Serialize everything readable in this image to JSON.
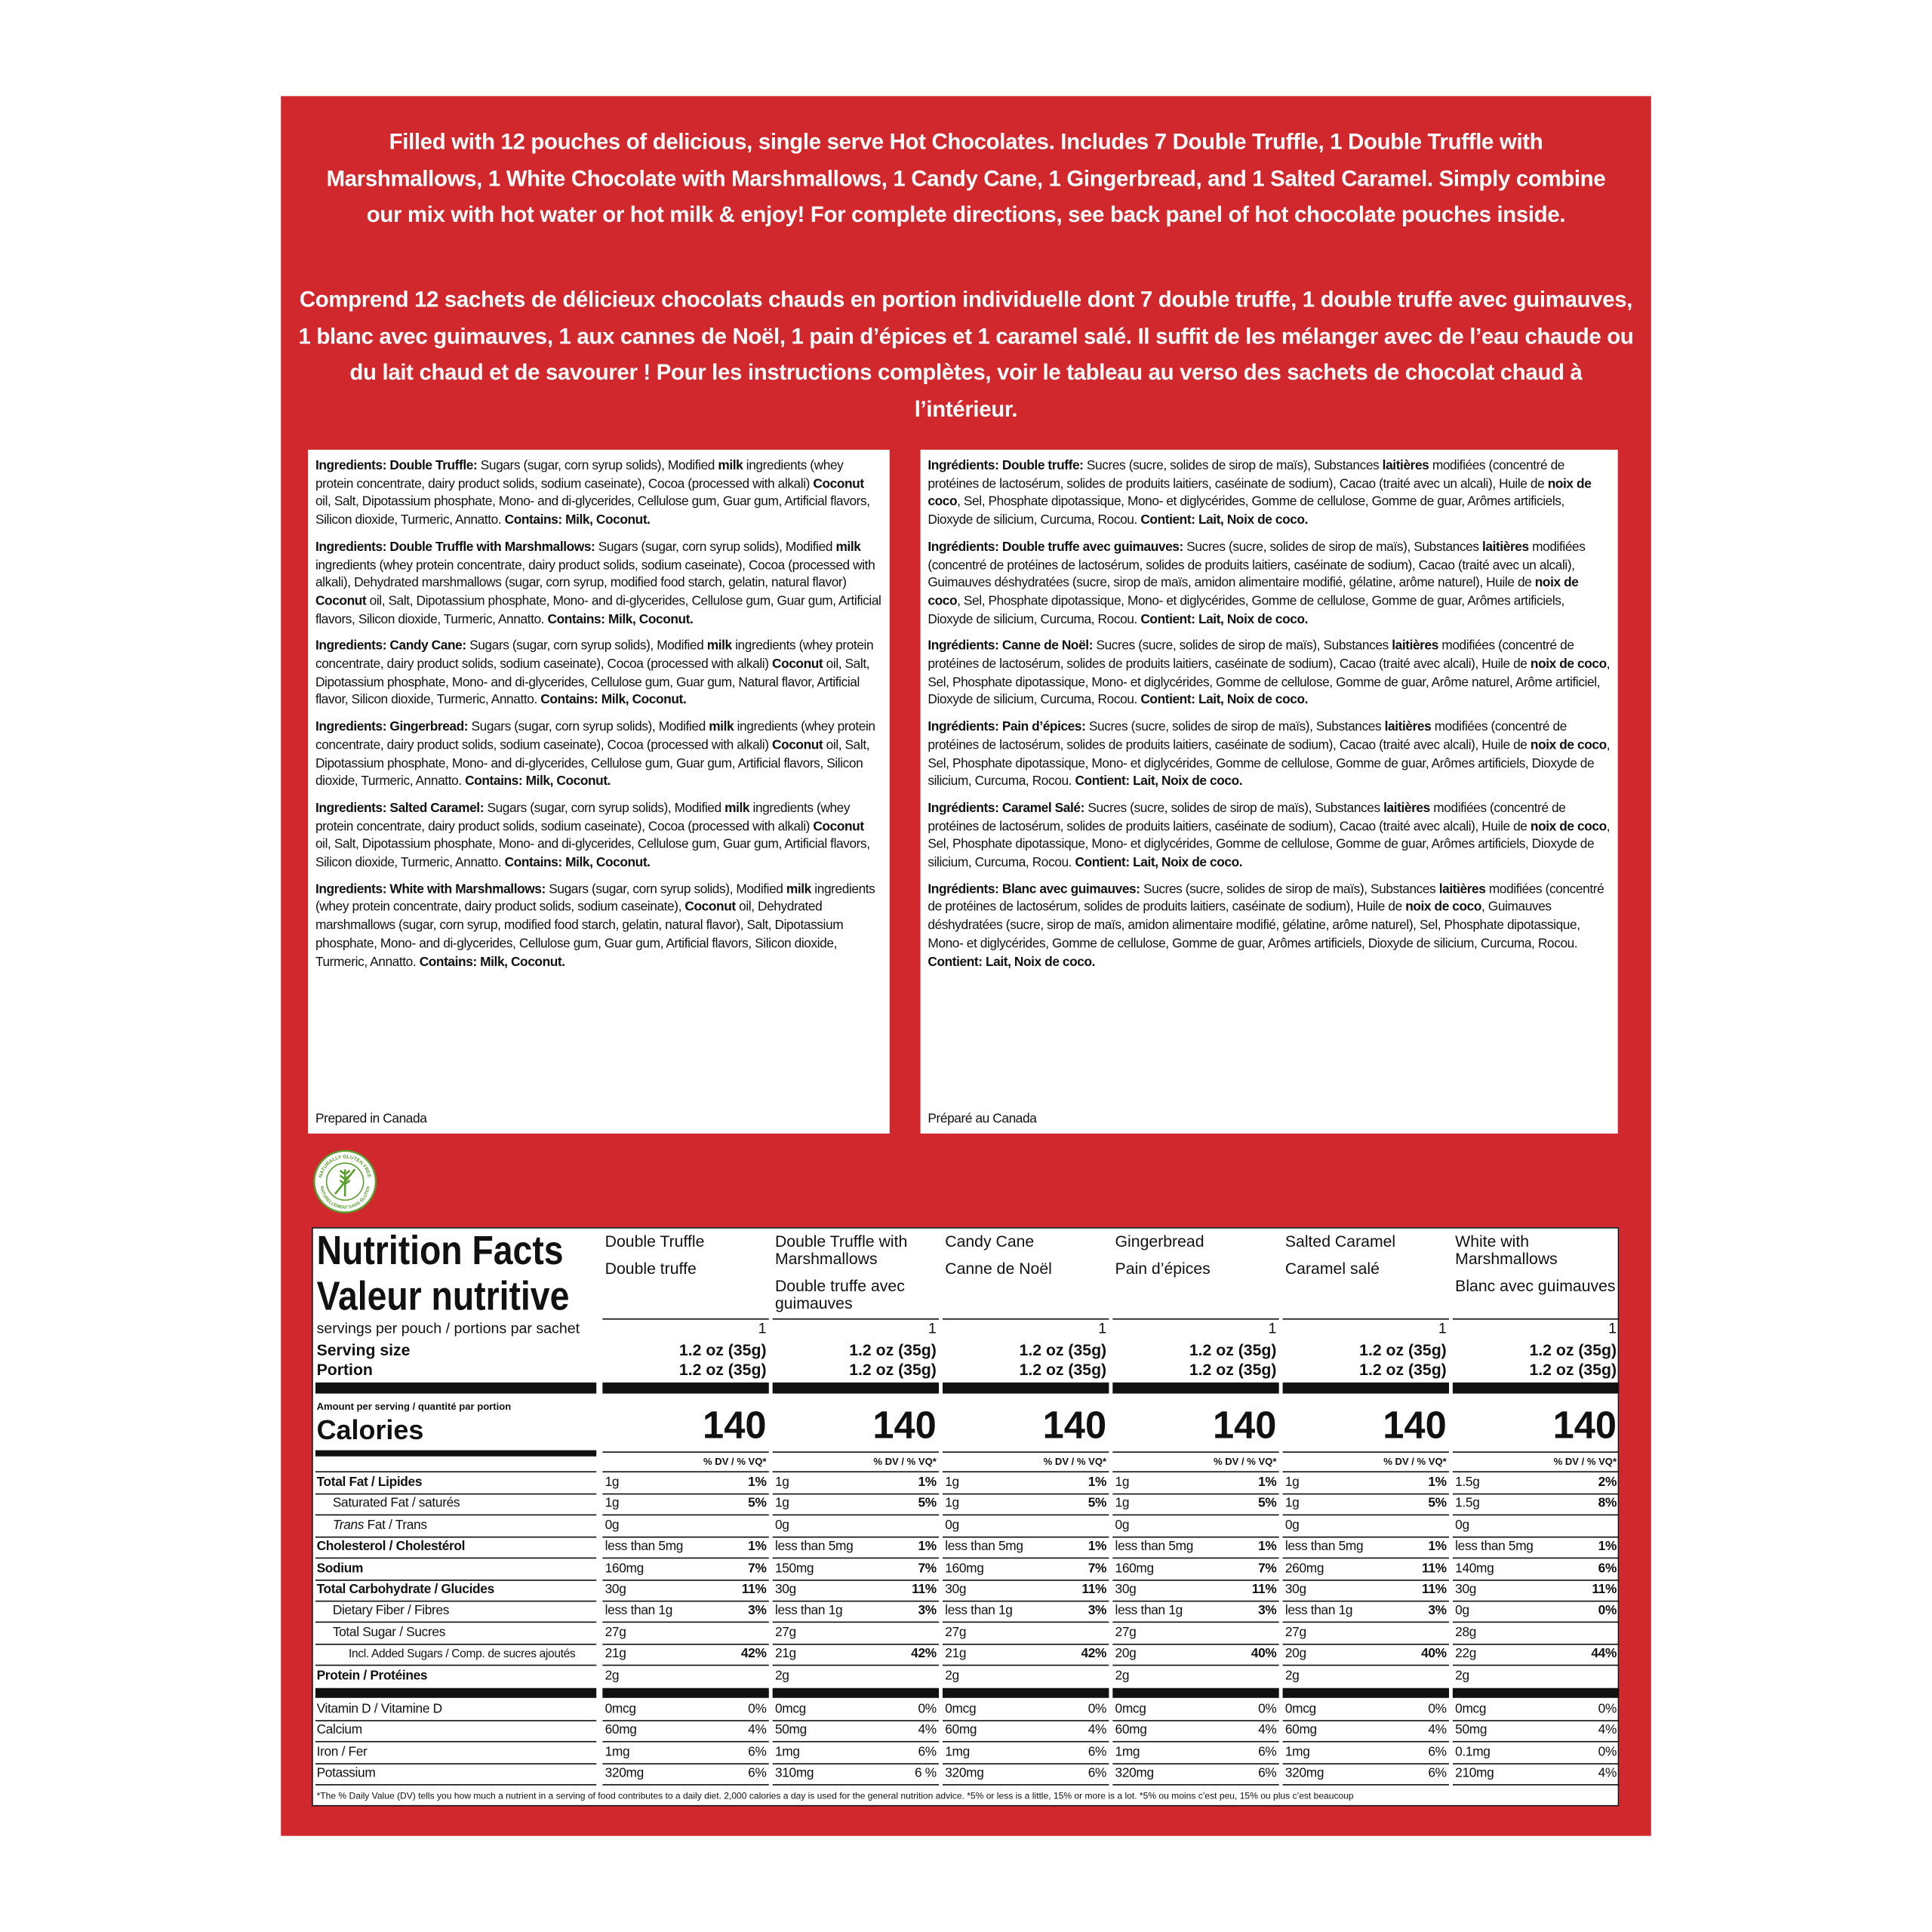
{
  "header": {
    "en": "Filled with 12 pouches of delicious, single serve Hot Chocolates. Includes 7 Double Truffle, 1 Double Truffle with Marshmallows, 1 White Chocolate with Marshmallows, 1 Candy Cane, 1 Gingerbread, and 1 Salted Caramel. Simply combine our mix with hot water or hot milk & enjoy!  For complete directions, see back panel of hot chocolate pouches inside.",
    "fr": "Comprend 12 sachets de délicieux chocolats chauds en portion individuelle dont 7 double truffe, 1 double truffe avec guimauves, 1 blanc avec guimauves, 1 aux cannes de Noël, 1 pain d’épices et 1 caramel salé. Il suffit de les mélanger avec de l’eau chaude ou du lait chaud et de savourer ! Pour les instructions complètes, voir le tableau au verso des sachets de chocolat chaud à l’intérieur."
  },
  "ingredients": {
    "en": [
      [
        {
          "bold": "Ingredients: Double Truffle:"
        },
        " Sugars (sugar, corn syrup solids), Modified ",
        {
          "bold": "milk"
        },
        " ingredients (whey protein concentrate, dairy product solids, sodium caseinate), Cocoa (processed with alkali) ",
        {
          "bold": "Coconut"
        },
        " oil, Salt, Dipotassium phosphate, Mono- and di-glycerides, Cellulose gum, Guar gum, Artificial flavors, Silicon dioxide, Turmeric, Annatto. ",
        {
          "bold": "Contains: Milk, Coconut."
        }
      ],
      [
        {
          "bold": "Ingredients: Double Truffle with Marshmallows:"
        },
        " Sugars (sugar, corn syrup solids), Modified ",
        {
          "bold": "milk"
        },
        " ingredients (whey protein concentrate, dairy product solids, sodium caseinate), Cocoa (processed with alkali), Dehydrated marshmallows (sugar, corn syrup, modified food starch, gelatin, natural flavor) ",
        {
          "bold": "Coconut"
        },
        " oil, Salt, Dipotassium phosphate, Mono- and di-glycerides, Cellulose gum, Guar gum, Artificial flavors, Silicon dioxide, Turmeric, Annatto. ",
        {
          "bold": "Contains: Milk, Coconut."
        }
      ],
      [
        {
          "bold": "Ingredients: Candy Cane:"
        },
        " Sugars (sugar, corn syrup solids), Modified ",
        {
          "bold": "milk"
        },
        " ingredients (whey protein concentrate, dairy product solids, sodium caseinate), Cocoa (processed with alkali) ",
        {
          "bold": "Coconut"
        },
        " oil, Salt, Dipotassium phosphate, Mono- and di-glycerides, Cellulose gum, Guar gum, Natural flavor, Artificial flavor, Silicon dioxide, Turmeric, Annatto. ",
        {
          "bold": "Contains: Milk, Coconut."
        }
      ],
      [
        {
          "bold": "Ingredients: Gingerbread:"
        },
        " Sugars (sugar, corn syrup solids), Modified ",
        {
          "bold": "milk"
        },
        " ingredients (whey protein concentrate, dairy product solids, sodium caseinate), Cocoa (processed with alkali) ",
        {
          "bold": "Coconut"
        },
        " oil, Salt, Dipotassium phosphate, Mono- and di-glycerides, Cellulose gum, Guar gum, Artificial flavors, Silicon dioxide, Turmeric, Annatto. ",
        {
          "bold": "Contains: Milk, Coconut."
        }
      ],
      [
        {
          "bold": "Ingredients: Salted Caramel:"
        },
        " Sugars (sugar, corn syrup solids), Modified ",
        {
          "bold": "milk"
        },
        " ingredients (whey protein concentrate, dairy product solids, sodium caseinate), Cocoa (processed with alkali) ",
        {
          "bold": "Coconut"
        },
        " oil, Salt, Dipotassium phosphate, Mono- and di-glycerides, Cellulose gum, Guar gum, Artificial flavors, Silicon dioxide, Turmeric, Annatto. ",
        {
          "bold": "Contains: Milk, Coconut."
        }
      ],
      [
        {
          "bold": "Ingredients: White with Marshmallows:"
        },
        " Sugars (sugar, corn syrup solids), Modified ",
        {
          "bold": "milk"
        },
        " ingredients (whey protein concentrate, dairy product solids, sodium caseinate), ",
        {
          "bold": "Coconut"
        },
        " oil, Dehydrated marshmallows (sugar, corn syrup, modified food starch, gelatin, natural flavor), Salt, Dipotassium phosphate, Mono- and di-glycerides, Cellulose gum, Guar gum, Artificial flavors, Silicon dioxide, Turmeric, Annatto. ",
        {
          "bold": "Contains: Milk, Coconut."
        }
      ]
    ],
    "fr": [
      [
        {
          "bold": "Ingrédients: Double truffe:"
        },
        " Sucres (sucre, solides de sirop de maïs), Substances ",
        {
          "bold": "laitières"
        },
        " modifiées (concentré de protéines de lactosérum, solides de produits laitiers, caséinate de sodium), Cacao (traité avec un alcali), Huile de ",
        {
          "bold": "noix de coco"
        },
        ", Sel, Phosphate dipotassique, Mono- et diglycérides, Gomme de cellulose, Gomme de guar, Arômes artificiels, Dioxyde de silicium, Curcuma, Rocou. ",
        {
          "bold": "Contient: Lait, Noix de coco."
        }
      ],
      [
        {
          "bold": "Ingrédients: Double truffe avec guimauves:"
        },
        " Sucres (sucre, solides de sirop de maïs), Substances ",
        {
          "bold": "laitières"
        },
        " modifiées (concentré de protéines de lactosérum, solides de produits laitiers, caséinate de sodium), Cacao (traité avec un alcali), Guimauves déshydratées (sucre, sirop de maïs, amidon alimentaire modifié, gélatine, arôme naturel), Huile de ",
        {
          "bold": "noix de coco"
        },
        ", Sel, Phosphate dipotassique, Mono- et diglycérides, Gomme de cellulose, Gomme de guar, Arômes artificiels, Dioxyde de silicium, Curcuma, Rocou. ",
        {
          "bold": "Contient: Lait, Noix de coco."
        }
      ],
      [
        {
          "bold": "Ingrédients: Canne de Noël:"
        },
        " Sucres (sucre, solides de sirop de maïs), Substances ",
        {
          "bold": "laitières"
        },
        " modifiées (concentré de protéines de lactosérum, solides de produits laitiers, caséinate de sodium), Cacao (traité avec alcali), Huile de ",
        {
          "bold": "noix de coco"
        },
        ", Sel, Phosphate dipotassique, Mono- et diglycérides, Gomme de cellulose, Gomme de guar, Arôme naturel, Arôme artificiel, Dioxyde de silicium, Curcuma, Rocou. ",
        {
          "bold": "Contient: Lait, Noix de coco."
        }
      ],
      [
        {
          "bold": "Ingrédients: Pain d’épices:"
        },
        " Sucres (sucre, solides de sirop de maïs), Substances ",
        {
          "bold": "laitières"
        },
        " modifiées (concentré de protéines de lactosérum, solides de produits laitiers, caséinate de sodium), Cacao (traité avec alcali), Huile de ",
        {
          "bold": "noix de coco"
        },
        ", Sel, Phosphate dipotassique, Mono- et diglycérides, Gomme de cellulose, Gomme de guar, Arômes artificiels, Dioxyde de silicium, Curcuma, Rocou. ",
        {
          "bold": "Contient: Lait, Noix de coco."
        }
      ],
      [
        {
          "bold": "Ingrédients: Caramel Salé:"
        },
        " Sucres (sucre, solides de sirop de maïs), Substances ",
        {
          "bold": "laitières"
        },
        " modifiées (concentré de protéines de lactosérum, solides de produits laitiers, caséinate de sodium), Cacao (traité avec alcali), Huile de ",
        {
          "bold": "noix de coco"
        },
        ", Sel, Phosphate dipotassique, Mono- et diglycérides, Gomme de cellulose, Gomme de guar, Arômes artificiels, Dioxyde de silicium, Curcuma, Rocou. ",
        {
          "bold": "Contient: Lait, Noix de coco."
        }
      ],
      [
        {
          "bold": "Ingrédients: Blanc avec guimauves:"
        },
        " Sucres (sucre, solides de sirop de maïs), Substances ",
        {
          "bold": "laitières"
        },
        " modifiées (concentré de protéines de lactosérum, solides de produits laitiers, caséinate de sodium), Huile de ",
        {
          "bold": "noix de coco"
        },
        ", Guimauves déshydratées (sucre, sirop de maïs, amidon alimentaire modifié, gélatine, arôme naturel), Sel, Phosphate dipotassique, Mono- et diglycérides, Gomme de cellulose, Gomme de guar, Arômes artificiels, Dioxyde de silicium, Curcuma, Rocou. ",
        {
          "bold": "Contient: Lait, Noix de coco."
        }
      ]
    ],
    "prepared_en": "Prepared in Canada",
    "prepared_fr": "Préparé au Canada"
  },
  "badge": {
    "top": "NATURALLY GLUTEN FREE",
    "bottom": "NATURELLEMENT SANS GLUTEN"
  },
  "nutrition": {
    "title_en": "Nutrition Facts",
    "title_fr": "Valeur nutritive",
    "servings_label": "servings per pouch / portions par sachet",
    "serving_size_label": "Serving size",
    "portion_label": "Portion",
    "amount_label": "Amount per serving / quantité par portion",
    "calories_label": "Calories",
    "dv_header": "% DV / % VQ*",
    "nutrients": [
      {
        "label": "Total Fat / Lipides",
        "bold": true,
        "indent": 0
      },
      {
        "label": "Saturated Fat / saturés",
        "bold": false,
        "indent": 1
      },
      {
        "label": [
          {
            "italic": "Trans"
          },
          " Fat / Trans"
        ],
        "bold": false,
        "indent": 1
      },
      {
        "label": "Cholesterol / Cholestérol",
        "bold": true,
        "indent": 0
      },
      {
        "label": "Sodium",
        "bold": true,
        "indent": 0
      },
      {
        "label": "Total Carbohydrate / Glucides",
        "bold": true,
        "indent": 0
      },
      {
        "label": "Dietary Fiber / Fibres",
        "bold": false,
        "indent": 1
      },
      {
        "label": "Total Sugar / Sucres",
        "bold": false,
        "indent": 1
      },
      {
        "label": "Incl. Added Sugars / Comp. de sucres ajoutés",
        "bold": false,
        "indent": 2
      },
      {
        "label": "Protein / Protéines",
        "bold": true,
        "indent": 0
      }
    ],
    "vitamins": [
      "Vitamin D / Vitamine D",
      "Calcium",
      "Iron / Fer",
      "Potassium"
    ],
    "products": [
      {
        "name_en": "Double Truffle",
        "name_fr": "Double truffe",
        "servings": 1,
        "serving_size": "1.2 oz (35g)",
        "portion": "1.2 oz (35g)",
        "calories": 140,
        "nutrients": [
          [
            "1g",
            "1%"
          ],
          [
            "1g",
            "5%"
          ],
          [
            "0g",
            null
          ],
          [
            "less than 5mg",
            "1%"
          ],
          [
            "160mg",
            "7%"
          ],
          [
            "30g",
            "11%"
          ],
          [
            "less than 1g",
            "3%"
          ],
          [
            "27g",
            null
          ],
          [
            "21g",
            "42%"
          ],
          [
            "2g",
            null
          ]
        ],
        "vitamins": [
          [
            "0mcg",
            "0%"
          ],
          [
            "60mg",
            "4%"
          ],
          [
            "1mg",
            "6%"
          ],
          [
            "320mg",
            "6%"
          ]
        ]
      },
      {
        "name_en": "Double Truffle with Marshmallows",
        "name_fr": "Double truffe avec guimauves",
        "servings": 1,
        "serving_size": "1.2 oz (35g)",
        "portion": "1.2 oz (35g)",
        "calories": 140,
        "nutrients": [
          [
            "1g",
            "1%"
          ],
          [
            "1g",
            "5%"
          ],
          [
            "0g",
            null
          ],
          [
            "less than 5mg",
            "1%"
          ],
          [
            "150mg",
            "7%"
          ],
          [
            "30g",
            "11%"
          ],
          [
            "less than 1g",
            "3%"
          ],
          [
            "27g",
            null
          ],
          [
            "21g",
            "42%"
          ],
          [
            "2g",
            null
          ]
        ],
        "vitamins": [
          [
            "0mcg",
            "0%"
          ],
          [
            "50mg",
            "4%"
          ],
          [
            "1mg",
            "6%"
          ],
          [
            "310mg",
            "6 %"
          ]
        ]
      },
      {
        "name_en": "Candy Cane",
        "name_fr": "Canne de Noël",
        "servings": 1,
        "serving_size": "1.2 oz (35g)",
        "portion": "1.2 oz (35g)",
        "calories": 140,
        "nutrients": [
          [
            "1g",
            "1%"
          ],
          [
            "1g",
            "5%"
          ],
          [
            "0g",
            null
          ],
          [
            "less than 5mg",
            "1%"
          ],
          [
            "160mg",
            "7%"
          ],
          [
            "30g",
            "11%"
          ],
          [
            "less than 1g",
            "3%"
          ],
          [
            "27g",
            null
          ],
          [
            "21g",
            "42%"
          ],
          [
            "2g",
            null
          ]
        ],
        "vitamins": [
          [
            "0mcg",
            "0%"
          ],
          [
            "60mg",
            "4%"
          ],
          [
            "1mg",
            "6%"
          ],
          [
            "320mg",
            "6%"
          ]
        ]
      },
      {
        "name_en": "Gingerbread",
        "name_fr": "Pain d’épices",
        "servings": 1,
        "serving_size": "1.2 oz (35g)",
        "portion": "1.2 oz (35g)",
        "calories": 140,
        "nutrients": [
          [
            "1g",
            "1%"
          ],
          [
            "1g",
            "5%"
          ],
          [
            "0g",
            null
          ],
          [
            "less than 5mg",
            "1%"
          ],
          [
            "160mg",
            "7%"
          ],
          [
            "30g",
            "11%"
          ],
          [
            "less than 1g",
            "3%"
          ],
          [
            "27g",
            null
          ],
          [
            "20g",
            "40%"
          ],
          [
            "2g",
            null
          ]
        ],
        "vitamins": [
          [
            "0mcg",
            "0%"
          ],
          [
            "60mg",
            "4%"
          ],
          [
            "1mg",
            "6%"
          ],
          [
            "320mg",
            "6%"
          ]
        ]
      },
      {
        "name_en": "Salted Caramel",
        "name_fr": "Caramel salé",
        "servings": 1,
        "serving_size": "1.2 oz (35g)",
        "portion": "1.2 oz (35g)",
        "calories": 140,
        "nutrients": [
          [
            "1g",
            "1%"
          ],
          [
            "1g",
            "5%"
          ],
          [
            "0g",
            null
          ],
          [
            "less than 5mg",
            "1%"
          ],
          [
            "260mg",
            "11%"
          ],
          [
            "30g",
            "11%"
          ],
          [
            "less than 1g",
            "3%"
          ],
          [
            "27g",
            null
          ],
          [
            "20g",
            "40%"
          ],
          [
            "2g",
            null
          ]
        ],
        "vitamins": [
          [
            "0mcg",
            "0%"
          ],
          [
            "60mg",
            "4%"
          ],
          [
            "1mg",
            "6%"
          ],
          [
            "320mg",
            "6%"
          ]
        ]
      },
      {
        "name_en": "White with Marshmallows",
        "name_fr": "Blanc avec guimauves",
        "servings": 1,
        "serving_size": "1.2 oz (35g)",
        "portion": "1.2 oz (35g)",
        "calories": 140,
        "nutrients": [
          [
            "1.5g",
            "2%"
          ],
          [
            "1.5g",
            "8%"
          ],
          [
            "0g",
            null
          ],
          [
            "less than 5mg",
            "1%"
          ],
          [
            "140mg",
            "6%"
          ],
          [
            "30g",
            "11%"
          ],
          [
            "0g",
            "0%"
          ],
          [
            "28g",
            null
          ],
          [
            "22g",
            "44%"
          ],
          [
            "2g",
            null
          ]
        ],
        "vitamins": [
          [
            "0mcg",
            "0%"
          ],
          [
            "50mg",
            "4%"
          ],
          [
            "0.1mg",
            "0%"
          ],
          [
            "210mg",
            "4%"
          ]
        ]
      }
    ],
    "footnote": "*The % Daily Value (DV) tells you how much a nutrient in a serving of food contributes to a daily diet. 2,000 calories a day is used for the general nutrition advice. *5% or less is a little, 15% or more is a lot. *5% ou moins c’est peu, 15% ou plus c’est beaucoup"
  }
}
